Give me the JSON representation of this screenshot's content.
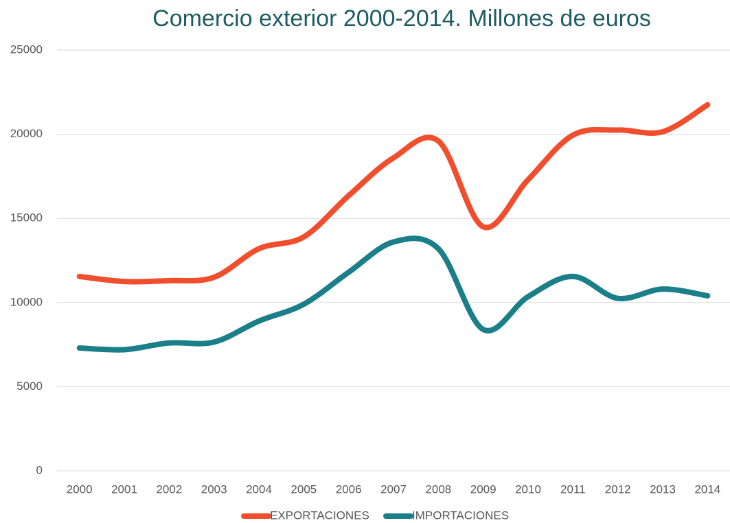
{
  "chart_data": {
    "type": "line",
    "title": "Comercio exterior 2000-2014. Millones de euros",
    "categories": [
      "2000",
      "2001",
      "2002",
      "2003",
      "2004",
      "2005",
      "2006",
      "2007",
      "2008",
      "2009",
      "2010",
      "2011",
      "2012",
      "2013",
      "2014"
    ],
    "series": [
      {
        "name": "EXPORTACIONES",
        "color": "#f04e2d",
        "values": [
          11550,
          11250,
          11300,
          11500,
          13200,
          13900,
          16350,
          18600,
          19600,
          14500,
          17300,
          19950,
          20250,
          20150,
          21750
        ]
      },
      {
        "name": "IMPORTACIONES",
        "color": "#1b7f8a",
        "values": [
          7300,
          7200,
          7600,
          7650,
          8900,
          9900,
          11800,
          13600,
          13200,
          8400,
          10350,
          11550,
          10250,
          10800,
          10400
        ]
      }
    ],
    "ylim": [
      0,
      25000
    ],
    "yticks": [
      0,
      5000,
      10000,
      15000,
      20000,
      25000
    ],
    "grid": true,
    "smooth": true,
    "legend": "bottom"
  }
}
